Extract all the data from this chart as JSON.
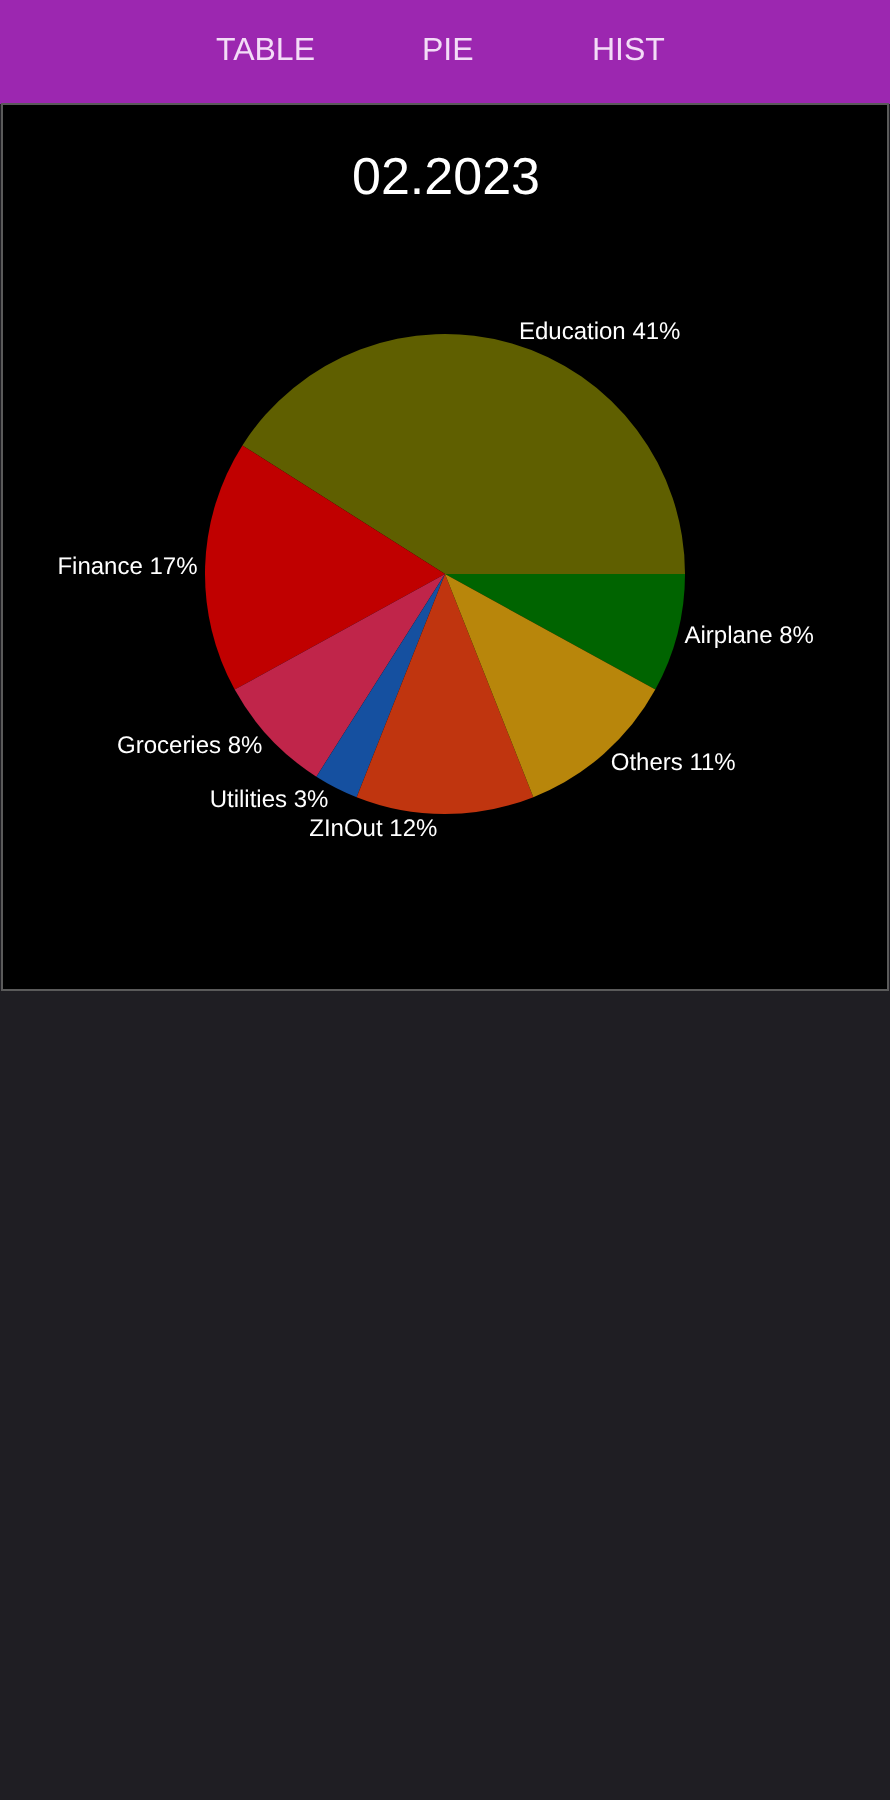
{
  "chart_data": {
    "type": "pie",
    "title": "02.2023",
    "categories": [
      "Airplane",
      "Education",
      "Finance",
      "Groceries",
      "Utilities",
      "ZInOut",
      "Others"
    ],
    "values": [
      8,
      41,
      17,
      8,
      3,
      12,
      11
    ],
    "value_labels": [
      "8%",
      "41%",
      "17%",
      "8%",
      "3%",
      "12%",
      "11%"
    ],
    "colors": [
      "#006400",
      "#5f5f00",
      "#c00000",
      "#c0254a",
      "#1550a0",
      "#c0350f",
      "#b8860b"
    ],
    "annotations": [
      "TABLE",
      "PIE",
      "HIST"
    ],
    "legend": false
  }
}
